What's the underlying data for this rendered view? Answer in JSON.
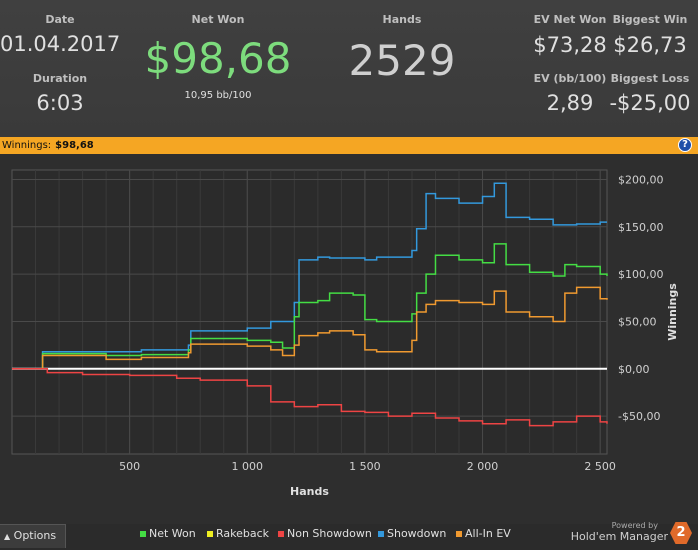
{
  "stats": {
    "date_label": "Date",
    "date_value": "01.04.2017",
    "duration_label": "Duration",
    "duration_value": "6:03",
    "netwon_label": "Net Won",
    "netwon_value": "$98,68",
    "netwon_sub": "10,95 bb/100",
    "hands_label": "Hands",
    "hands_value": "2529",
    "evnet_label": "EV Net Won",
    "evnet_value": "$73,28",
    "bigwin_label": "Biggest Win",
    "bigwin_value": "$26,73",
    "evbb_label": "EV (bb/100)",
    "evbb_value": "2,89",
    "bigloss_label": "Biggest Loss",
    "bigloss_value": "-$25,00"
  },
  "winbar": {
    "label": "Winnings:",
    "value": "$98,68",
    "help": "?"
  },
  "footer": {
    "options_label": "Options",
    "legend": [
      {
        "name": "Net Won",
        "color": "#44dd44"
      },
      {
        "name": "Rakeback",
        "color": "#eeee22"
      },
      {
        "name": "Non Showdown",
        "color": "#ee4444"
      },
      {
        "name": "Showdown",
        "color": "#3399dd"
      },
      {
        "name": "All-In EV",
        "color": "#f09a30"
      }
    ],
    "powered_by": "Powered by",
    "brand": "Hold'em Manager",
    "brand_badge": "2"
  },
  "chart_data": {
    "type": "line",
    "xlabel": "Hands",
    "ylabel": "Winnings",
    "xlim": [
      0,
      2529
    ],
    "ylim": [
      -90,
      210
    ],
    "xticks": [
      500,
      1000,
      1500,
      2000,
      2500
    ],
    "xtick_labels": [
      "500",
      "1 000",
      "1 500",
      "2 000",
      "2 500"
    ],
    "yticks": [
      -50,
      0,
      50,
      100,
      150,
      200
    ],
    "ytick_labels": [
      "-$50,00",
      "$0,00",
      "$50,00",
      "$100,00",
      "$150,00",
      "$200,00"
    ],
    "grid": true,
    "series": [
      {
        "name": "Showdown",
        "color": "#3399dd",
        "x": [
          0,
          120,
          130,
          400,
          550,
          750,
          760,
          1000,
          1100,
          1200,
          1220,
          1300,
          1350,
          1500,
          1550,
          1700,
          1720,
          1760,
          1800,
          1900,
          2000,
          2050,
          2100,
          2200,
          2300,
          2400,
          2500,
          2529
        ],
        "y": [
          0,
          0,
          18,
          18,
          20,
          25,
          40,
          43,
          50,
          70,
          115,
          118,
          117,
          115,
          118,
          125,
          148,
          185,
          180,
          175,
          182,
          196,
          160,
          158,
          152,
          153,
          155,
          155
        ]
      },
      {
        "name": "Net Won",
        "color": "#44dd44",
        "x": [
          0,
          120,
          130,
          400,
          550,
          750,
          760,
          1000,
          1100,
          1150,
          1200,
          1220,
          1300,
          1350,
          1450,
          1500,
          1550,
          1700,
          1720,
          1760,
          1800,
          1900,
          2000,
          2050,
          2100,
          2200,
          2300,
          2350,
          2400,
          2500,
          2529
        ],
        "y": [
          0,
          0,
          16,
          14,
          15,
          20,
          32,
          30,
          28,
          22,
          55,
          70,
          72,
          80,
          78,
          52,
          50,
          58,
          80,
          100,
          120,
          115,
          112,
          132,
          110,
          102,
          98,
          110,
          108,
          100,
          98
        ]
      },
      {
        "name": "All-In EV",
        "color": "#f09a30",
        "x": [
          0,
          120,
          130,
          400,
          550,
          750,
          760,
          1000,
          1100,
          1150,
          1200,
          1220,
          1300,
          1350,
          1450,
          1500,
          1550,
          1700,
          1720,
          1760,
          1800,
          1900,
          2000,
          2050,
          2100,
          2200,
          2300,
          2350,
          2400,
          2500,
          2529
        ],
        "y": [
          0,
          0,
          14,
          10,
          12,
          17,
          26,
          24,
          20,
          14,
          25,
          35,
          38,
          40,
          36,
          20,
          18,
          30,
          60,
          68,
          72,
          70,
          68,
          82,
          60,
          55,
          50,
          80,
          86,
          74,
          73
        ]
      },
      {
        "name": "Rakeback",
        "color": "#eeee22",
        "x": [
          0,
          2529
        ],
        "y": [
          0,
          0
        ]
      },
      {
        "name": "Non Showdown",
        "color": "#ee4444",
        "x": [
          0,
          150,
          300,
          500,
          700,
          800,
          1000,
          1100,
          1200,
          1300,
          1400,
          1500,
          1600,
          1700,
          1800,
          1900,
          2000,
          2100,
          2200,
          2300,
          2400,
          2500,
          2529
        ],
        "y": [
          0,
          -4,
          -6,
          -7,
          -10,
          -12,
          -18,
          -35,
          -40,
          -38,
          -45,
          -46,
          -50,
          -47,
          -52,
          -55,
          -58,
          -54,
          -60,
          -56,
          -50,
          -56,
          -58
        ]
      }
    ]
  }
}
